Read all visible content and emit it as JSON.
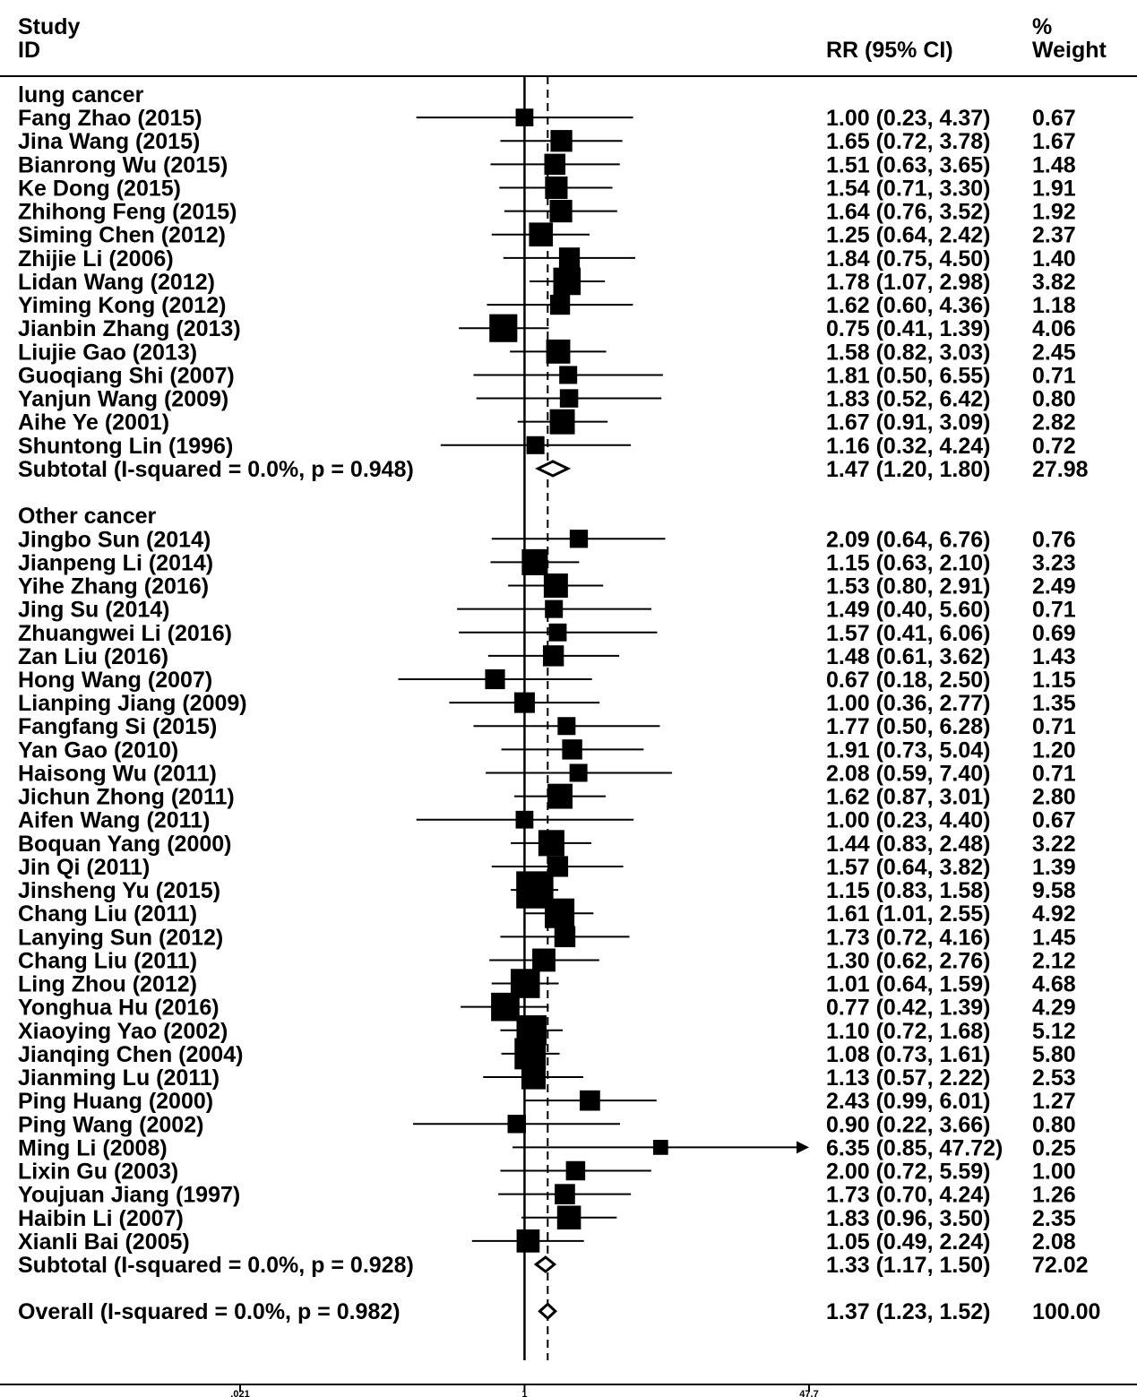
{
  "chart_data": {
    "type": "forest",
    "header": {
      "study_line1": "Study",
      "study_line2": "ID",
      "estimate": "RR (95% CI)",
      "weight_line1": "%",
      "weight_line2": "Weight"
    },
    "x_scale": "log",
    "xlim": [
      0.021,
      47.7
    ],
    "xticks": [
      ".021",
      "1",
      "47.7"
    ],
    "null_value": 1,
    "overall_value": 1.37,
    "groups": [
      {
        "name": "lung cancer",
        "studies": [
          {
            "label": "Fang Zhao (2015)",
            "rr": 1.0,
            "lo": 0.23,
            "hi": 4.37,
            "ci_text": "1.00 (0.23, 4.37)",
            "weight": "0.67"
          },
          {
            "label": "Jina Wang (2015)",
            "rr": 1.65,
            "lo": 0.72,
            "hi": 3.78,
            "ci_text": "1.65 (0.72, 3.78)",
            "weight": "1.67"
          },
          {
            "label": "Bianrong Wu (2015)",
            "rr": 1.51,
            "lo": 0.63,
            "hi": 3.65,
            "ci_text": "1.51 (0.63, 3.65)",
            "weight": "1.48"
          },
          {
            "label": "Ke Dong (2015)",
            "rr": 1.54,
            "lo": 0.71,
            "hi": 3.3,
            "ci_text": "1.54 (0.71, 3.30)",
            "weight": "1.91"
          },
          {
            "label": "Zhihong Feng (2015)",
            "rr": 1.64,
            "lo": 0.76,
            "hi": 3.52,
            "ci_text": "1.64 (0.76, 3.52)",
            "weight": "1.92"
          },
          {
            "label": "Siming Chen (2012)",
            "rr": 1.25,
            "lo": 0.64,
            "hi": 2.42,
            "ci_text": "1.25 (0.64, 2.42)",
            "weight": "2.37"
          },
          {
            "label": "Zhijie Li (2006)",
            "rr": 1.84,
            "lo": 0.75,
            "hi": 4.5,
            "ci_text": "1.84 (0.75, 4.50)",
            "weight": "1.40"
          },
          {
            "label": "Lidan Wang (2012)",
            "rr": 1.78,
            "lo": 1.07,
            "hi": 2.98,
            "ci_text": "1.78 (1.07, 2.98)",
            "weight": "3.82"
          },
          {
            "label": "Yiming Kong (2012)",
            "rr": 1.62,
            "lo": 0.6,
            "hi": 4.36,
            "ci_text": "1.62 (0.60, 4.36)",
            "weight": "1.18"
          },
          {
            "label": "Jianbin Zhang (2013)",
            "rr": 0.75,
            "lo": 0.41,
            "hi": 1.39,
            "ci_text": "0.75 (0.41, 1.39)",
            "weight": "4.06"
          },
          {
            "label": "Liujie Gao (2013)",
            "rr": 1.58,
            "lo": 0.82,
            "hi": 3.03,
            "ci_text": "1.58 (0.82, 3.03)",
            "weight": "2.45"
          },
          {
            "label": "Guoqiang Shi (2007)",
            "rr": 1.81,
            "lo": 0.5,
            "hi": 6.55,
            "ci_text": "1.81 (0.50, 6.55)",
            "weight": "0.71"
          },
          {
            "label": "Yanjun Wang (2009)",
            "rr": 1.83,
            "lo": 0.52,
            "hi": 6.42,
            "ci_text": "1.83 (0.52, 6.42)",
            "weight": "0.80"
          },
          {
            "label": "Aihe Ye (2001)",
            "rr": 1.67,
            "lo": 0.91,
            "hi": 3.09,
            "ci_text": "1.67 (0.91, 3.09)",
            "weight": "2.82"
          },
          {
            "label": "Shuntong Lin (1996)",
            "rr": 1.16,
            "lo": 0.32,
            "hi": 4.24,
            "ci_text": "1.16 (0.32, 4.24)",
            "weight": "0.72"
          }
        ],
        "subtotal": {
          "label": "Subtotal  (I-squared = 0.0%, p = 0.948)",
          "rr": 1.47,
          "lo": 1.2,
          "hi": 1.8,
          "ci_text": "1.47 (1.20, 1.80)",
          "weight": "27.98"
        }
      },
      {
        "name": "Other cancer",
        "studies": [
          {
            "label": "Jingbo Sun (2014)",
            "rr": 2.09,
            "lo": 0.64,
            "hi": 6.76,
            "ci_text": "2.09 (0.64, 6.76)",
            "weight": "0.76"
          },
          {
            "label": "Jianpeng Li (2014)",
            "rr": 1.15,
            "lo": 0.63,
            "hi": 2.1,
            "ci_text": "1.15 (0.63, 2.10)",
            "weight": "3.23"
          },
          {
            "label": "Yihe Zhang (2016)",
            "rr": 1.53,
            "lo": 0.8,
            "hi": 2.91,
            "ci_text": "1.53 (0.80, 2.91)",
            "weight": "2.49"
          },
          {
            "label": "Jing Su (2014)",
            "rr": 1.49,
            "lo": 0.4,
            "hi": 5.6,
            "ci_text": "1.49 (0.40, 5.60)",
            "weight": "0.71"
          },
          {
            "label": "Zhuangwei Li (2016)",
            "rr": 1.57,
            "lo": 0.41,
            "hi": 6.06,
            "ci_text": "1.57 (0.41, 6.06)",
            "weight": "0.69"
          },
          {
            "label": "Zan Liu (2016)",
            "rr": 1.48,
            "lo": 0.61,
            "hi": 3.62,
            "ci_text": "1.48 (0.61, 3.62)",
            "weight": "1.43"
          },
          {
            "label": "Hong Wang (2007)",
            "rr": 0.67,
            "lo": 0.18,
            "hi": 2.5,
            "ci_text": "0.67 (0.18, 2.50)",
            "weight": "1.15"
          },
          {
            "label": "Lianping Jiang (2009)",
            "rr": 1.0,
            "lo": 0.36,
            "hi": 2.77,
            "ci_text": "1.00 (0.36, 2.77)",
            "weight": "1.35"
          },
          {
            "label": "Fangfang Si (2015)",
            "rr": 1.77,
            "lo": 0.5,
            "hi": 6.28,
            "ci_text": "1.77 (0.50, 6.28)",
            "weight": "0.71"
          },
          {
            "label": "Yan Gao (2010)",
            "rr": 1.91,
            "lo": 0.73,
            "hi": 5.04,
            "ci_text": "1.91 (0.73, 5.04)",
            "weight": "1.20"
          },
          {
            "label": "Haisong Wu (2011)",
            "rr": 2.08,
            "lo": 0.59,
            "hi": 7.4,
            "ci_text": "2.08 (0.59, 7.40)",
            "weight": "0.71"
          },
          {
            "label": "Jichun Zhong (2011)",
            "rr": 1.62,
            "lo": 0.87,
            "hi": 3.01,
            "ci_text": "1.62 (0.87, 3.01)",
            "weight": "2.80"
          },
          {
            "label": "Aifen Wang (2011)",
            "rr": 1.0,
            "lo": 0.23,
            "hi": 4.4,
            "ci_text": "1.00 (0.23, 4.40)",
            "weight": "0.67"
          },
          {
            "label": "Boquan Yang (2000)",
            "rr": 1.44,
            "lo": 0.83,
            "hi": 2.48,
            "ci_text": "1.44 (0.83, 2.48)",
            "weight": "3.22"
          },
          {
            "label": "Jin Qi (2011)",
            "rr": 1.57,
            "lo": 0.64,
            "hi": 3.82,
            "ci_text": "1.57 (0.64, 3.82)",
            "weight": "1.39"
          },
          {
            "label": "Jinsheng Yu (2015)",
            "rr": 1.15,
            "lo": 0.83,
            "hi": 1.58,
            "ci_text": "1.15 (0.83, 1.58)",
            "weight": "9.58"
          },
          {
            "label": "Chang Liu (2011)",
            "rr": 1.61,
            "lo": 1.01,
            "hi": 2.55,
            "ci_text": "1.61 (1.01, 2.55)",
            "weight": "4.92"
          },
          {
            "label": "Lanying Sun (2012)",
            "rr": 1.73,
            "lo": 0.72,
            "hi": 4.16,
            "ci_text": "1.73 (0.72, 4.16)",
            "weight": "1.45"
          },
          {
            "label": "Chang Liu (2011)",
            "rr": 1.3,
            "lo": 0.62,
            "hi": 2.76,
            "ci_text": "1.30 (0.62, 2.76)",
            "weight": "2.12"
          },
          {
            "label": "Ling Zhou (2012)",
            "rr": 1.01,
            "lo": 0.64,
            "hi": 1.59,
            "ci_text": "1.01 (0.64, 1.59)",
            "weight": "4.68"
          },
          {
            "label": "Yonghua Hu (2016)",
            "rr": 0.77,
            "lo": 0.42,
            "hi": 1.39,
            "ci_text": "0.77 (0.42, 1.39)",
            "weight": "4.29"
          },
          {
            "label": "Xiaoying Yao (2002)",
            "rr": 1.1,
            "lo": 0.72,
            "hi": 1.68,
            "ci_text": "1.10 (0.72, 1.68)",
            "weight": "5.12"
          },
          {
            "label": "Jianqing Chen (2004)",
            "rr": 1.08,
            "lo": 0.73,
            "hi": 1.61,
            "ci_text": "1.08 (0.73, 1.61)",
            "weight": "5.80"
          },
          {
            "label": "Jianming Lu (2011)",
            "rr": 1.13,
            "lo": 0.57,
            "hi": 2.22,
            "ci_text": "1.13 (0.57, 2.22)",
            "weight": "2.53"
          },
          {
            "label": "Ping Huang (2000)",
            "rr": 2.43,
            "lo": 0.99,
            "hi": 6.01,
            "ci_text": "2.43 (0.99, 6.01)",
            "weight": "1.27"
          },
          {
            "label": "Ping Wang (2002)",
            "rr": 0.9,
            "lo": 0.22,
            "hi": 3.66,
            "ci_text": "0.90 (0.22, 3.66)",
            "weight": "0.80"
          },
          {
            "label": "Ming Li (2008)",
            "rr": 6.35,
            "lo": 0.85,
            "hi": 47.72,
            "ci_text": "6.35 (0.85, 47.72)",
            "weight": "0.25",
            "arrow": true
          },
          {
            "label": "Lixin Gu (2003)",
            "rr": 2.0,
            "lo": 0.72,
            "hi": 5.59,
            "ci_text": "2.00 (0.72, 5.59)",
            "weight": "1.00"
          },
          {
            "label": "Youjuan Jiang (1997)",
            "rr": 1.73,
            "lo": 0.7,
            "hi": 4.24,
            "ci_text": "1.73 (0.70, 4.24)",
            "weight": "1.26"
          },
          {
            "label": "Haibin Li (2007)",
            "rr": 1.83,
            "lo": 0.96,
            "hi": 3.5,
            "ci_text": "1.83 (0.96, 3.50)",
            "weight": "2.35"
          },
          {
            "label": "Xianli Bai (2005)",
            "rr": 1.05,
            "lo": 0.49,
            "hi": 2.24,
            "ci_text": "1.05 (0.49, 2.24)",
            "weight": "2.08"
          }
        ],
        "subtotal": {
          "label": "Subtotal  (I-squared = 0.0%, p = 0.928)",
          "rr": 1.33,
          "lo": 1.17,
          "hi": 1.5,
          "ci_text": "1.33 (1.17, 1.50)",
          "weight": "72.02"
        }
      }
    ],
    "overall": {
      "label": "Overall  (I-squared = 0.0%, p = 0.982)",
      "rr": 1.37,
      "lo": 1.23,
      "hi": 1.52,
      "ci_text": "1.37 (1.23, 1.52)",
      "weight": "100.00"
    }
  }
}
